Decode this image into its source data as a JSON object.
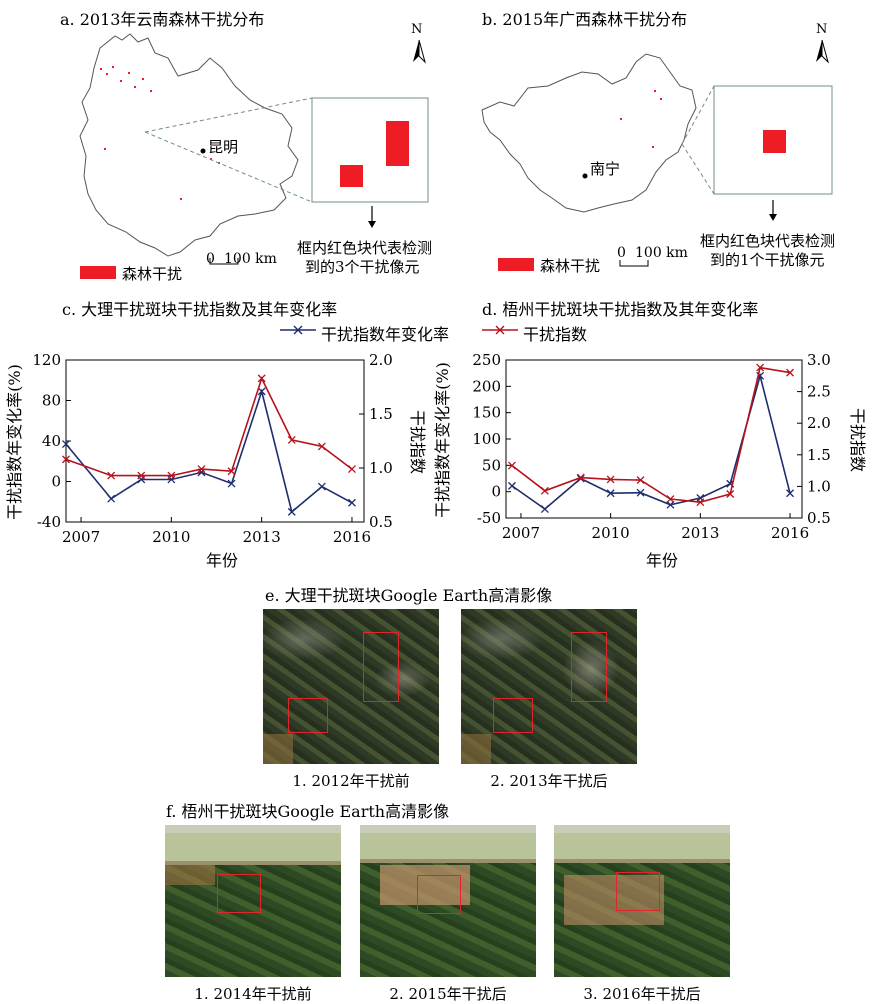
{
  "panel_a": {
    "title": "a. 2013年云南森林干扰分布",
    "city": "昆明",
    "north": "N",
    "scale_zero": "0",
    "scale_label": "100 km",
    "legend_label": "森林干扰",
    "inset_note_line1": "框内红色块代表检测",
    "inset_note_line2": "到的3个干扰像元"
  },
  "panel_b": {
    "title": "b. 2015年广西森林干扰分布",
    "city": "南宁",
    "north": "N",
    "scale_zero": "0",
    "scale_label": "100 km",
    "legend_label": "森林干扰",
    "inset_note_line1": "框内红色块代表检测",
    "inset_note_line2": "到的1个干扰像元"
  },
  "legend_shared": {
    "series1": "干扰指数年变化率",
    "series2": "干扰指数"
  },
  "colors": {
    "rate_series": "#1f2d6e",
    "index_series": "#b5121b",
    "disturbance": "#ee1c25",
    "box": "#e0262b"
  },
  "panel_c": {
    "title": "c. 大理干扰斑块干扰指数及其年变化率",
    "xlabel": "年份",
    "ylabel_left": "干扰指数年变化率(%)",
    "ylabel_right": "干扰指数",
    "left_ticks": [
      "-40",
      "0",
      "40",
      "80",
      "120"
    ],
    "right_ticks": [
      "0.5",
      "1.0",
      "1.5",
      "2.0"
    ],
    "x_ticks": [
      "2007",
      "2010",
      "2013",
      "2016"
    ]
  },
  "panel_d": {
    "title": "d. 梧州干扰斑块干扰指数及其年变化率",
    "xlabel": "年份",
    "ylabel_left": "干扰指数年变化率(%)",
    "ylabel_right": "干扰指数",
    "left_ticks": [
      "-50",
      "0",
      "50",
      "100",
      "150",
      "200",
      "250"
    ],
    "right_ticks": [
      "0.5",
      "1.0",
      "1.5",
      "2.0",
      "2.5",
      "3.0"
    ],
    "x_ticks": [
      "2007",
      "2010",
      "2013",
      "2016"
    ]
  },
  "panel_e": {
    "title": "e. 大理干扰斑块Google Earth高清影像",
    "captions": [
      "1. 2012年干扰前",
      "2. 2013年干扰后"
    ]
  },
  "panel_f": {
    "title": "f. 梧州干扰斑块Google Earth高清影像",
    "captions": [
      "1. 2014年干扰前",
      "2. 2015年干扰后",
      "3. 2016年干扰后"
    ]
  },
  "chart_data": [
    {
      "type": "line",
      "x": [
        2006.5,
        2008,
        2009,
        2010,
        2011,
        2012,
        2013,
        2014,
        2015,
        2016
      ],
      "series": [
        {
          "name": "干扰指数年变化率",
          "axis": "left",
          "values": [
            37,
            -17,
            2,
            2,
            9,
            -2,
            89,
            -30,
            -5,
            -21
          ]
        },
        {
          "name": "干扰指数",
          "axis": "right",
          "values": [
            1.08,
            0.93,
            0.93,
            0.93,
            0.99,
            0.97,
            1.83,
            1.26,
            1.2,
            0.99
          ]
        }
      ],
      "ylim_left": [
        -40,
        120
      ],
      "ylim_right": [
        0.5,
        2.0
      ],
      "xlim": [
        2006.5,
        2016.4
      ]
    },
    {
      "type": "line",
      "x": [
        2006.7,
        2007.8,
        2009,
        2010,
        2011,
        2012,
        2013,
        2014,
        2015,
        2016
      ],
      "series": [
        {
          "name": "干扰指数年变化率",
          "axis": "left",
          "values": [
            11,
            -33,
            25,
            -3,
            -2,
            -25,
            -12,
            15,
            220,
            -3
          ]
        },
        {
          "name": "干扰指数",
          "axis": "right",
          "values": [
            1.33,
            0.93,
            1.14,
            1.11,
            1.1,
            0.8,
            0.75,
            0.88,
            2.88,
            2.8
          ]
        }
      ],
      "ylim_left": [
        -50,
        250
      ],
      "ylim_right": [
        0.5,
        3.0
      ],
      "xlim": [
        2006.5,
        2016.4
      ]
    }
  ]
}
